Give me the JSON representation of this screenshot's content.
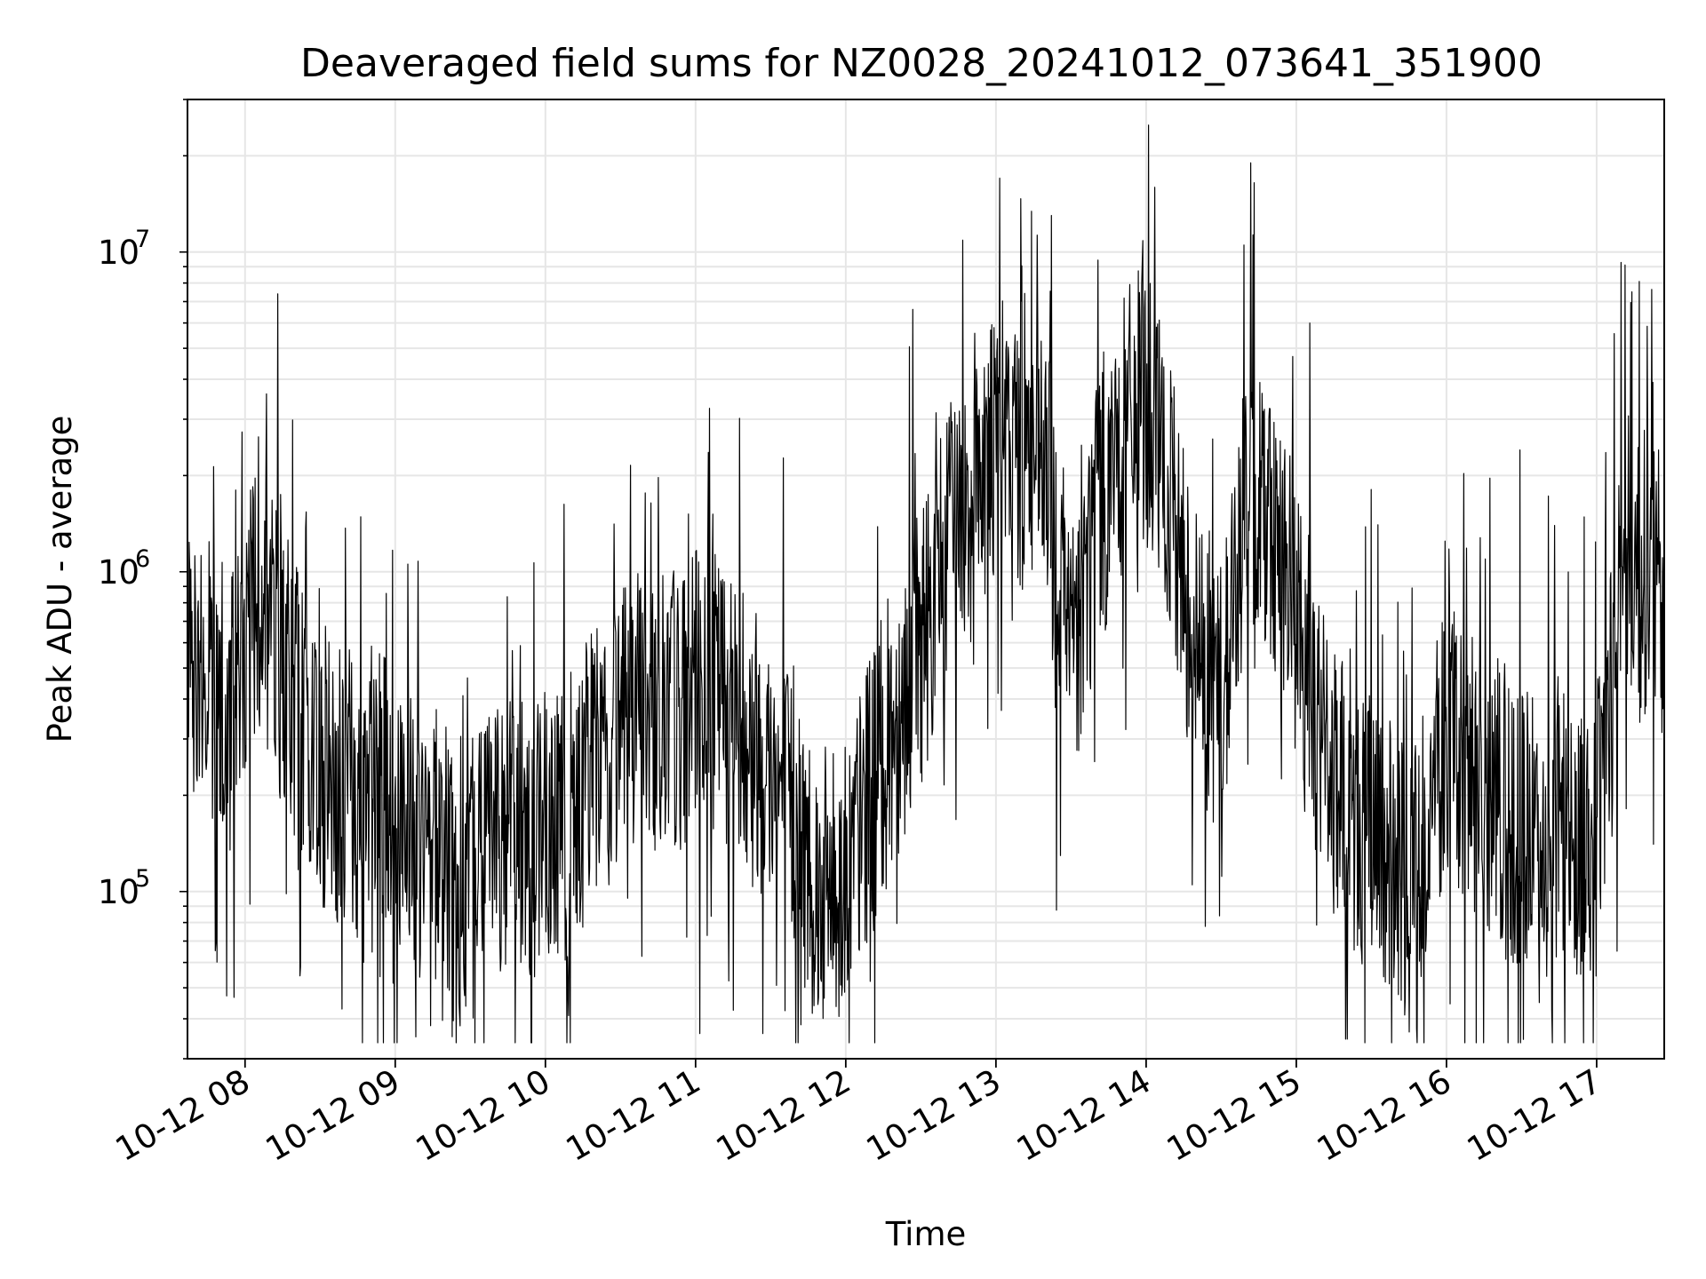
{
  "chart_data": {
    "type": "line",
    "title": "Deaveraged field sums for NZ0028_20241012_073641_351900",
    "xlabel": "Time",
    "ylabel": "Peak ADU - average",
    "y_scale": "log",
    "ylim": [
      30000,
      30000000
    ],
    "xlim": [
      "2024-10-12 07:37",
      "2024-10-12 17:27"
    ],
    "grid": true,
    "line_color": "#000000",
    "grid_color": "#e6e6e6",
    "x_ticks": [
      {
        "x": "2024-10-12 08:00",
        "label": "10-12 08"
      },
      {
        "x": "2024-10-12 09:00",
        "label": "10-12 09"
      },
      {
        "x": "2024-10-12 10:00",
        "label": "10-12 10"
      },
      {
        "x": "2024-10-12 11:00",
        "label": "10-12 11"
      },
      {
        "x": "2024-10-12 12:00",
        "label": "10-12 12"
      },
      {
        "x": "2024-10-12 13:00",
        "label": "10-12 13"
      },
      {
        "x": "2024-10-12 14:00",
        "label": "10-12 14"
      },
      {
        "x": "2024-10-12 15:00",
        "label": "10-12 15"
      },
      {
        "x": "2024-10-12 16:00",
        "label": "10-12 16"
      },
      {
        "x": "2024-10-12 17:00",
        "label": "10-12 17"
      }
    ],
    "y_ticks": [
      {
        "value": 100000,
        "base": "10",
        "exp": "5"
      },
      {
        "value": 1000000,
        "base": "10",
        "exp": "6"
      },
      {
        "value": 10000000,
        "base": "10",
        "exp": "7"
      }
    ],
    "series": [
      {
        "x": [
          "2024-10-12 07:37",
          "2024-10-12 07:45",
          "2024-10-12 07:55",
          "2024-10-12 08:05",
          "2024-10-12 08:15",
          "2024-10-12 08:30",
          "2024-10-12 08:45",
          "2024-10-12 09:00",
          "2024-10-12 09:10",
          "2024-10-12 09:20",
          "2024-10-12 09:25",
          "2024-10-12 09:35",
          "2024-10-12 09:50",
          "2024-10-12 10:05",
          "2024-10-12 10:20",
          "2024-10-12 10:35",
          "2024-10-12 10:50",
          "2024-10-12 11:05",
          "2024-10-12 11:20",
          "2024-10-12 11:35",
          "2024-10-12 11:50",
          "2024-10-12 12:00",
          "2024-10-12 12:10",
          "2024-10-12 12:20",
          "2024-10-12 12:30",
          "2024-10-12 12:40",
          "2024-10-12 12:50",
          "2024-10-12 13:00",
          "2024-10-12 13:10",
          "2024-10-12 13:20",
          "2024-10-12 13:30",
          "2024-10-12 13:40",
          "2024-10-12 13:50",
          "2024-10-12 14:00",
          "2024-10-12 14:10",
          "2024-10-12 14:20",
          "2024-10-12 14:30",
          "2024-10-12 14:40",
          "2024-10-12 14:50",
          "2024-10-12 15:00",
          "2024-10-12 15:15",
          "2024-10-12 15:30",
          "2024-10-12 15:45",
          "2024-10-12 16:00",
          "2024-10-12 16:15",
          "2024-10-12 16:30",
          "2024-10-12 16:45",
          "2024-10-12 17:00",
          "2024-10-12 17:10",
          "2024-10-12 17:20",
          "2024-10-12 17:27"
        ],
        "values": [
          600000,
          450000,
          350000,
          1000000,
          500000,
          250000,
          200000,
          200000,
          150000,
          130000,
          70000,
          150000,
          150000,
          150000,
          250000,
          400000,
          350000,
          450000,
          350000,
          200000,
          100000,
          110000,
          200000,
          350000,
          600000,
          1200000,
          2000000,
          2500000,
          2500000,
          2000000,
          500000,
          1500000,
          2500000,
          3500000,
          1500000,
          600000,
          400000,
          1800000,
          1500000,
          700000,
          200000,
          150000,
          100000,
          300000,
          200000,
          150000,
          150000,
          150000,
          1200000,
          1000000,
          800000
        ]
      }
    ]
  }
}
